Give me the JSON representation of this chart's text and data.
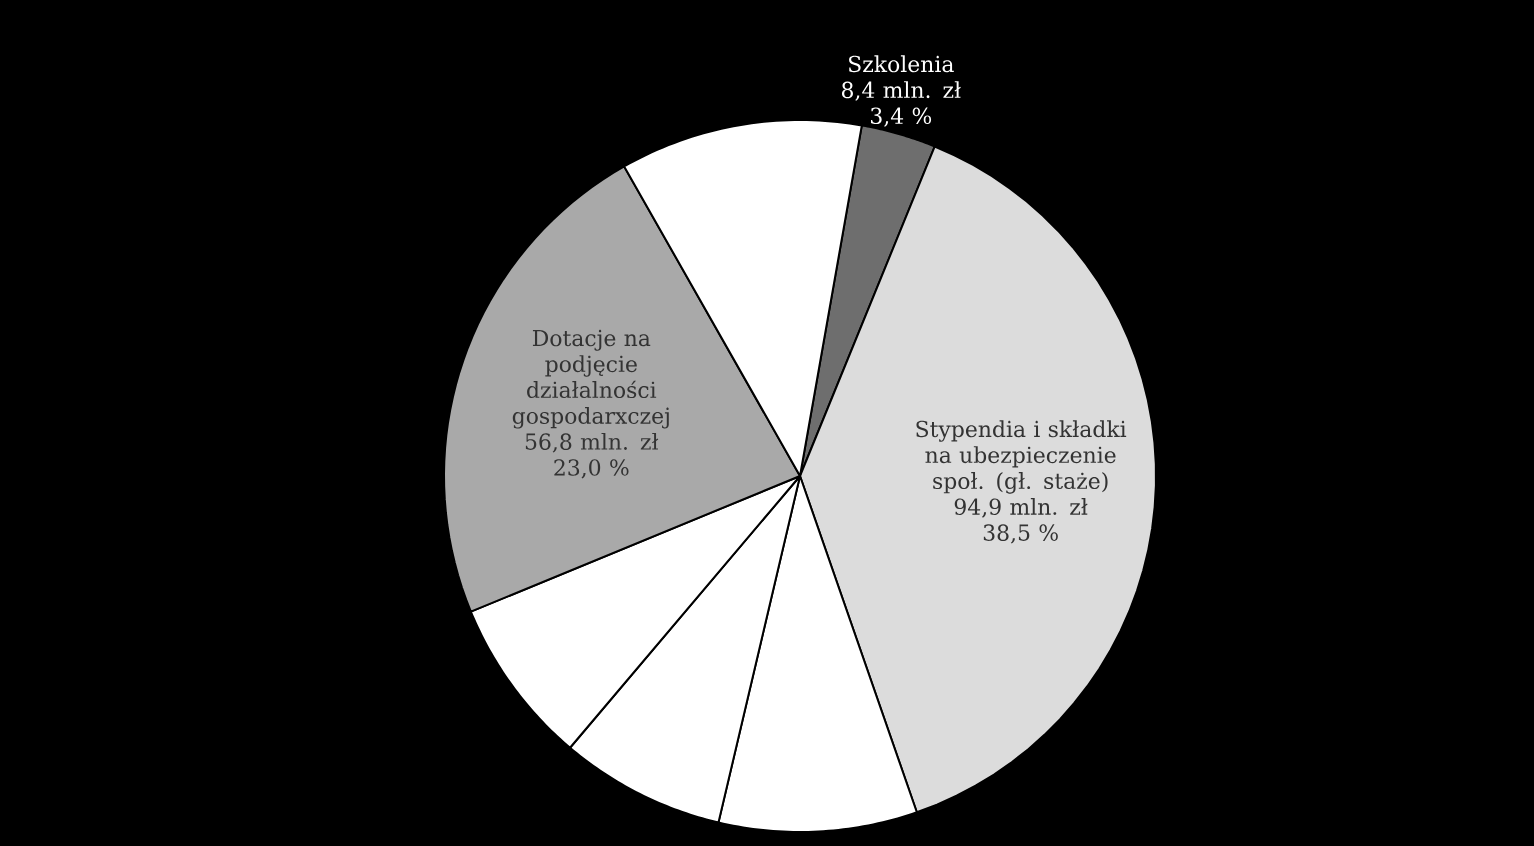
{
  "chart_data": {
    "type": "pie",
    "categories": [
      "Szkolenia",
      "Stypendia i składki na ubezpieczenie społ. (gł. staże)",
      null,
      null,
      null,
      "Dotacje na podjęcie działalności gospodarxczej",
      null
    ],
    "values": [
      3.4,
      38.5,
      9.0,
      7.5,
      7.6,
      23.0,
      11.0
    ],
    "colors": [
      "#6e6e6e",
      "#dcdcdc",
      "#ffffff",
      "#ffffff",
      "#ffffff",
      "#a9a9a9",
      "#ffffff"
    ],
    "value_labels": [
      "3,4 %",
      "38,5 %",
      null,
      null,
      null,
      "23,0 %",
      null
    ],
    "annotations": [
      "8,4 mln. zł",
      "94,9 mln. zł",
      "56,8 mln. zł"
    ]
  }
}
